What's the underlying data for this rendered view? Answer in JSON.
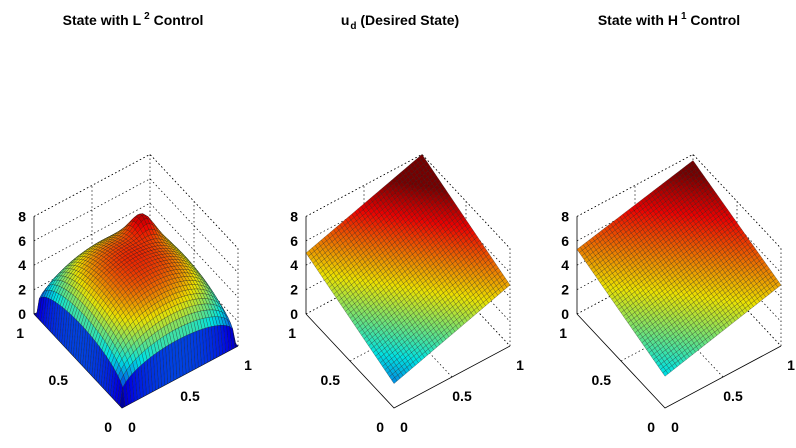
{
  "chart_data": [
    {
      "type": "surface",
      "title": {
        "main": "State with L",
        "sup": "2",
        "rest": " Control"
      },
      "xlabel": "",
      "ylabel": "",
      "zlabel": "",
      "xlim": [
        0,
        1
      ],
      "ylim": [
        0,
        1
      ],
      "zlim": [
        0,
        8
      ],
      "x_ticks": [
        "0",
        "0.5",
        "1"
      ],
      "y_ticks": [
        "0",
        "0.5",
        "1"
      ],
      "z_ticks": [
        "0",
        "2",
        "4",
        "6",
        "8"
      ],
      "grid": true,
      "colormap": "jet",
      "surface": {
        "description_values": {
          "corner_value": 0,
          "center_value": 6.0,
          "peak_value": 6.8,
          "edge_mid_value": 2.6
        }
      }
    },
    {
      "type": "surface",
      "title": {
        "main": "u",
        "sub": "d",
        "rest": " (Desired State)"
      },
      "xlabel": "",
      "ylabel": "",
      "zlabel": "",
      "xlim": [
        0,
        1
      ],
      "ylim": [
        0,
        1
      ],
      "zlim": [
        0,
        8
      ],
      "x_ticks": [
        "0",
        "0.5",
        "1"
      ],
      "y_ticks": [
        "0",
        "0.5",
        "1"
      ],
      "z_ticks": [
        "0",
        "2",
        "4",
        "6",
        "8"
      ],
      "grid": true,
      "colormap": "jet",
      "surface": {
        "corners": {
          "x0y0": 2.0,
          "x1y0": 5.0,
          "x0y1": 5.0,
          "x1y1": 8.0
        }
      }
    },
    {
      "type": "surface",
      "title": {
        "main": "State with H",
        "sup": "1",
        "rest": " Control"
      },
      "xlabel": "",
      "ylabel": "",
      "zlabel": "",
      "xlim": [
        0,
        1
      ],
      "ylim": [
        0,
        1
      ],
      "zlim": [
        0,
        8
      ],
      "x_ticks": [
        "0",
        "0.5",
        "1"
      ],
      "y_ticks": [
        "0",
        "0.5",
        "1"
      ],
      "z_ticks": [
        "0",
        "2",
        "4",
        "6",
        "8"
      ],
      "grid": true,
      "colormap": "jet",
      "surface": {
        "corners": {
          "x0y0": 2.6,
          "x1y0": 5.0,
          "x0y1": 5.3,
          "x1y1": 7.5
        }
      }
    }
  ]
}
